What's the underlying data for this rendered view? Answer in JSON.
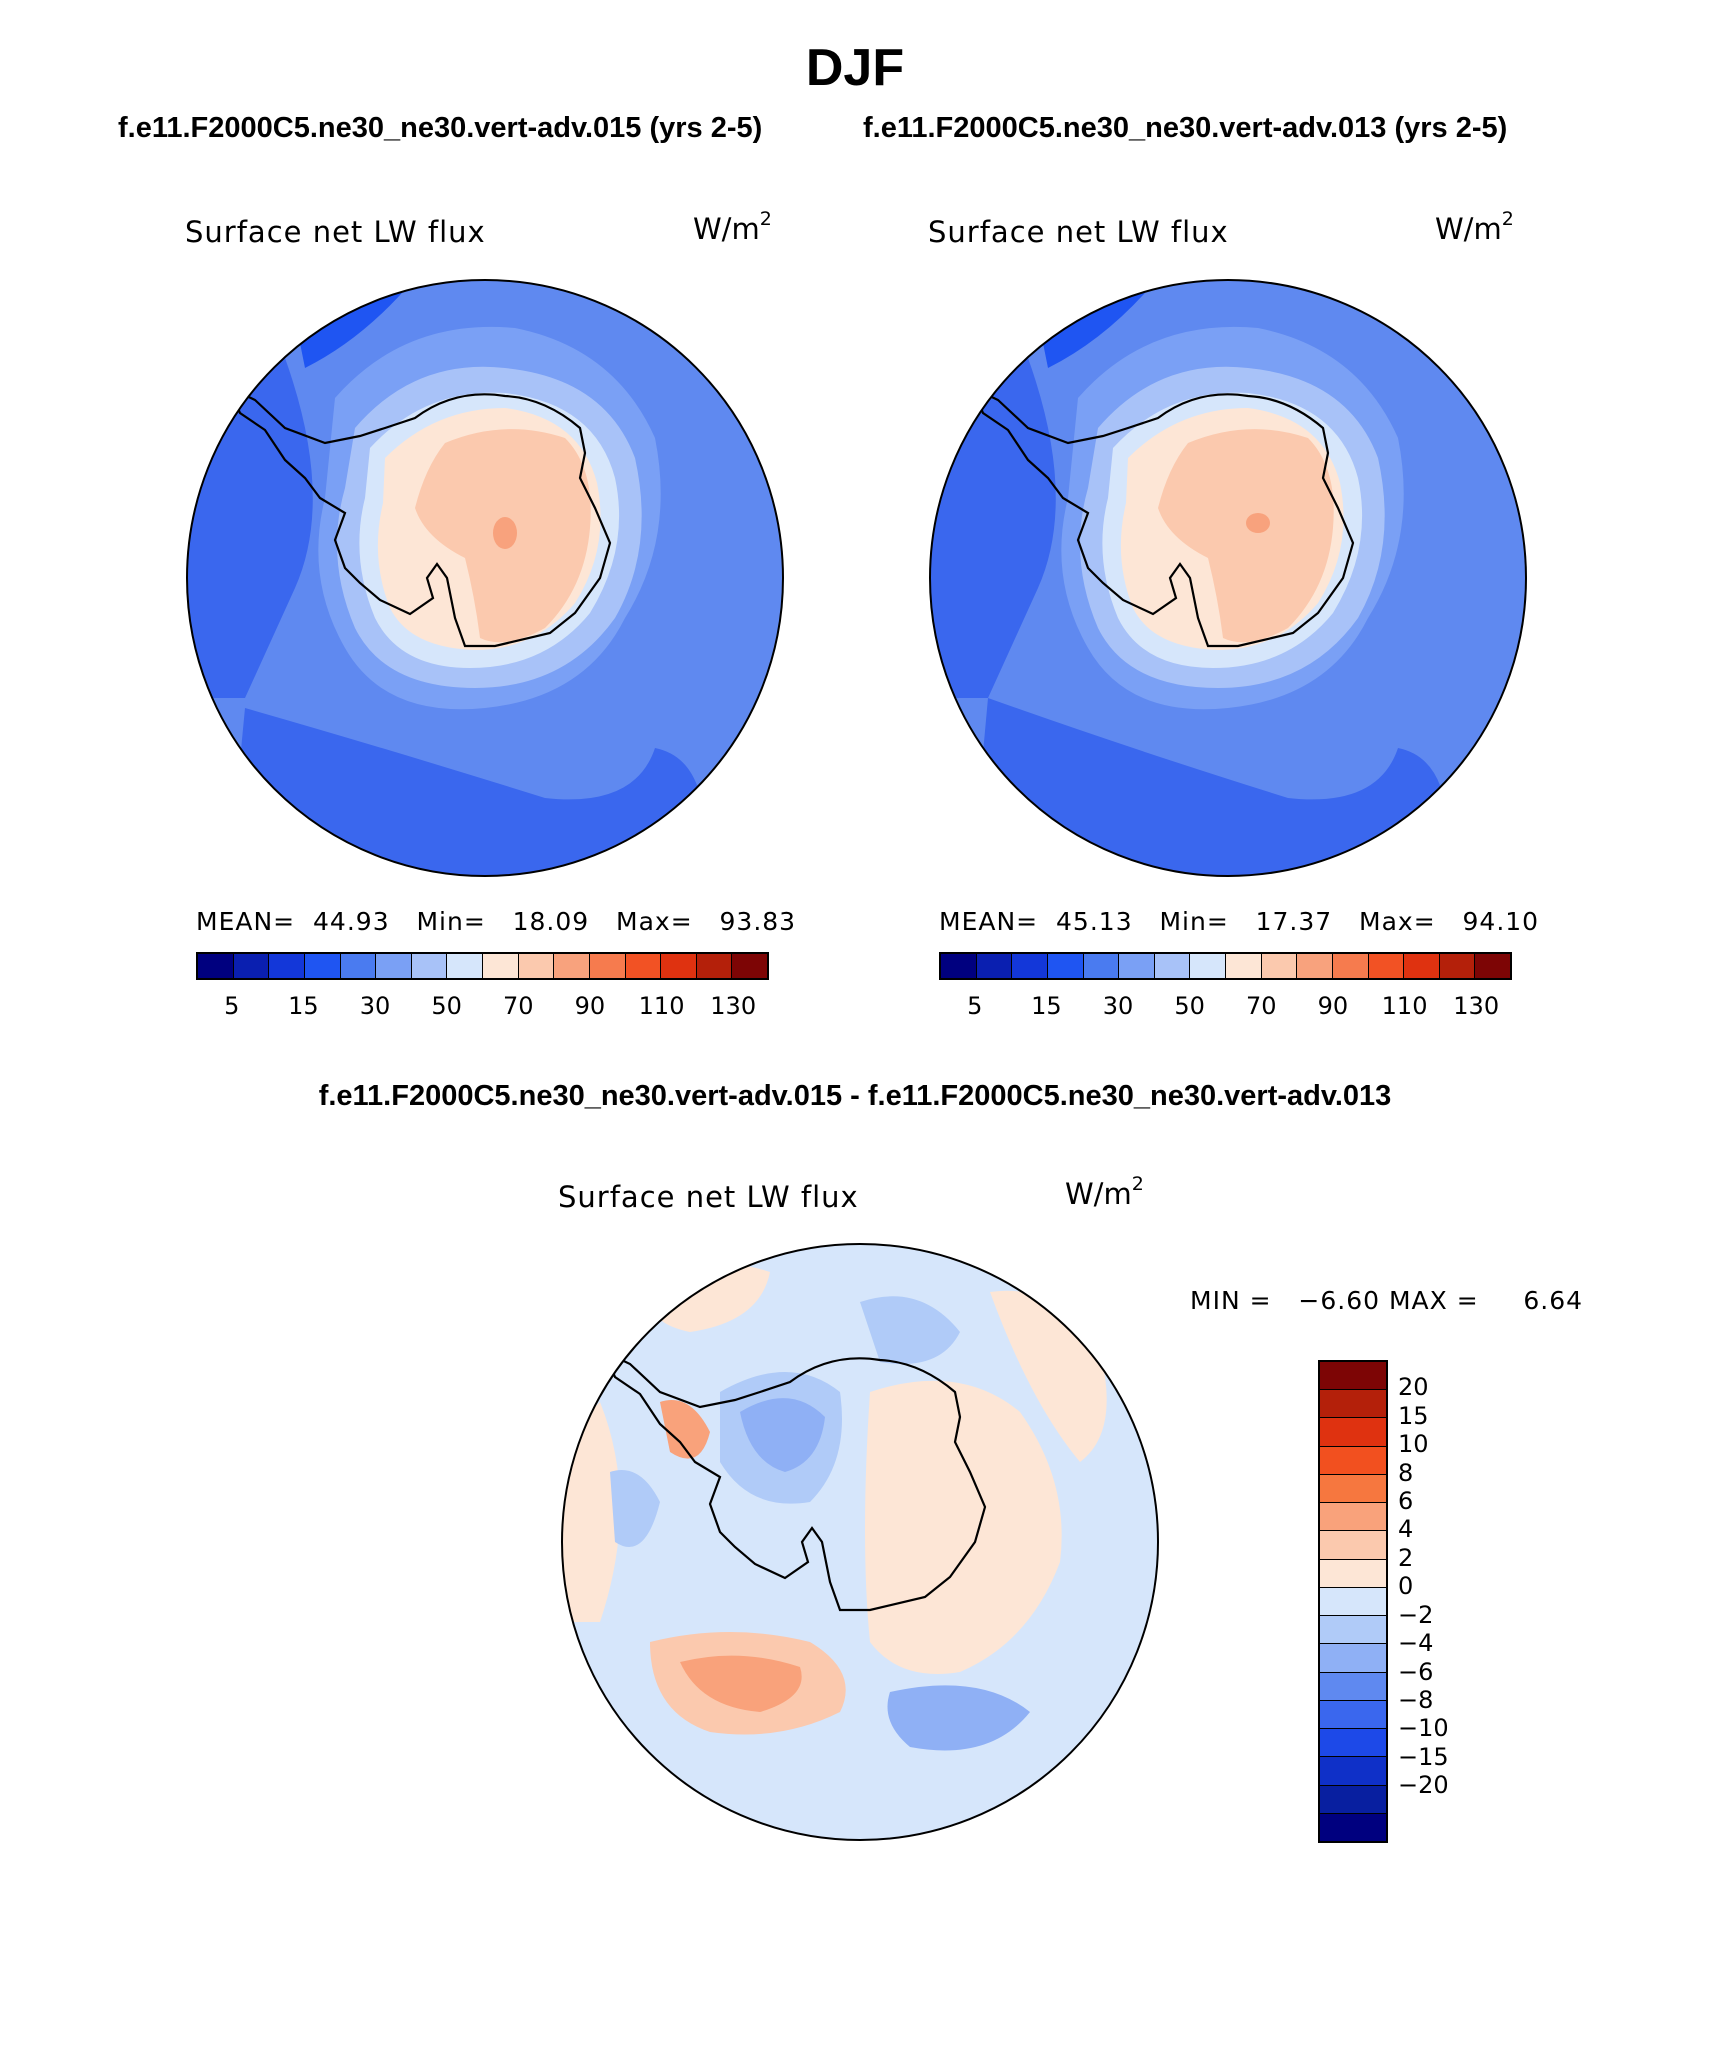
{
  "figure": {
    "season": "DJF",
    "case_left": "f.e11.F2000C5.ne30_ne30.vert-adv.015 (yrs 2-5)",
    "case_right": "f.e11.F2000C5.ne30_ne30.vert-adv.013 (yrs 2-5)",
    "diff_title": "f.e11.F2000C5.ne30_ne30.vert-adv.015 - f.e11.F2000C5.ne30_ne30.vert-adv.013"
  },
  "panels": {
    "left": {
      "variable": "Surface net LW flux",
      "units": "W/m",
      "units_exp": "2",
      "mean_label": "MEAN=",
      "mean_value": "44.93",
      "min_label": "Min=",
      "min_value": "18.09",
      "max_label": "Max=",
      "max_value": "93.83"
    },
    "right": {
      "variable": "Surface net LW flux",
      "units": "W/m",
      "units_exp": "2",
      "mean_label": "MEAN=",
      "mean_value": "45.13",
      "min_label": "Min=",
      "min_value": "17.37",
      "max_label": "Max=",
      "max_value": "94.10"
    },
    "diff": {
      "variable": "Surface net LW flux",
      "units": "W/m",
      "units_exp": "2",
      "min_label": "MIN =",
      "min_value": "−6.60",
      "max_label": "MAX =",
      "max_value": "6.64"
    }
  },
  "colorbars": {
    "abs": {
      "colors": [
        "#00007f",
        "#0a1fb0",
        "#1337d9",
        "#1f55f2",
        "#4a7bf0",
        "#7aa0f5",
        "#a8c2f8",
        "#d6e6fb",
        "#fde6d6",
        "#fbc9ae",
        "#f8a27d",
        "#f67b4e",
        "#f25224",
        "#df3210",
        "#b4200a",
        "#7d0505"
      ],
      "tick_labels": [
        "5",
        "15",
        "30",
        "50",
        "70",
        "90",
        "110",
        "130"
      ]
    },
    "diff": {
      "colors_top_to_bottom": [
        "#7d0505",
        "#b4200a",
        "#df3210",
        "#f2501f",
        "#f6773f",
        "#f9a27b",
        "#fbc9ae",
        "#fde6d6",
        "#d6e6fb",
        "#b0cbf8",
        "#8fb0f5",
        "#5f89f0",
        "#3a67ee",
        "#1d49e8",
        "#0f30c8",
        "#081fa0",
        "#00007f"
      ],
      "tick_labels": [
        "20",
        "15",
        "10",
        "8",
        "6",
        "4",
        "2",
        "0",
        "−2",
        "−4",
        "−6",
        "−8",
        "−10",
        "−15",
        "−20"
      ]
    }
  },
  "map_colors": {
    "ocean_dark": "#3a67ee",
    "ocean_mid": "#5f89f0",
    "ocean_light": "#7aa0f5",
    "ice_edge": "#a8c2f8",
    "coast_pale": "#d6e6fb",
    "land_pale": "#fde6d6",
    "land_salmon": "#fbc9ae",
    "land_orange": "#f8a27d",
    "diff_bg": "#d6e6fb",
    "diff_neg1": "#b0cbf8",
    "diff_neg2": "#8fb0f5",
    "diff_pos1": "#fde6d6",
    "diff_pos2": "#fbc9ae",
    "diff_pos3": "#f9a27b"
  }
}
